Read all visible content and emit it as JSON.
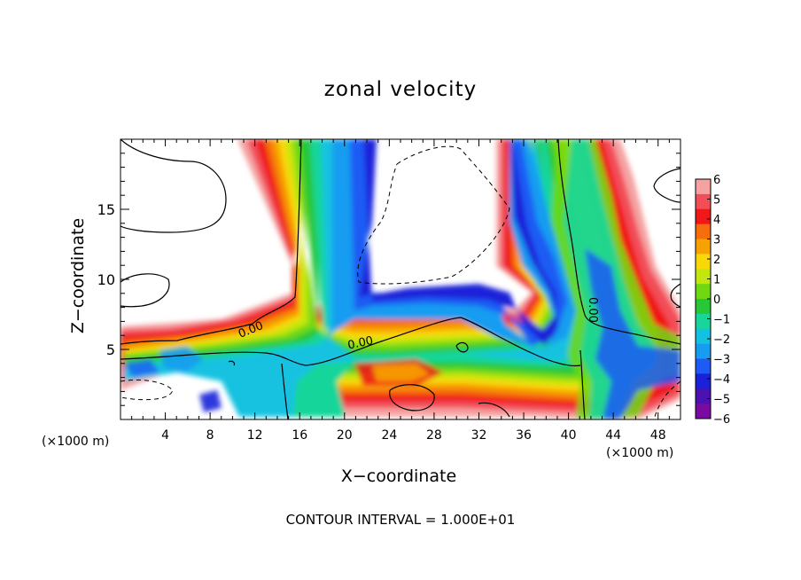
{
  "chart_data": {
    "type": "heatmap",
    "title": "zonal velocity",
    "xlabel": "X−coordinate",
    "ylabel": "Z−coordinate",
    "x_unit_label": "(×1000 m)",
    "footer": "CONTOUR INTERVAL = 1.000E+01",
    "xlim": [
      0,
      50
    ],
    "ylim": [
      0,
      20
    ],
    "x_ticks": [
      4,
      8,
      12,
      16,
      20,
      24,
      28,
      32,
      36,
      40,
      44,
      48
    ],
    "y_ticks": [
      5,
      10,
      15
    ],
    "contour_labels": [
      "0.00",
      "0.00",
      "0.00"
    ],
    "colorbar": {
      "ticks": [
        "6",
        "5",
        "4",
        "3",
        "2",
        "1",
        "0",
        "−1",
        "−2",
        "−3",
        "−4",
        "−5",
        "−6"
      ],
      "range": [
        -6,
        6
      ],
      "colors": [
        "#f4a2a2",
        "#f24e58",
        "#f01818",
        "#f56d0d",
        "#f7a203",
        "#f7d90a",
        "#c3e60f",
        "#70d812",
        "#27c838",
        "#18d59a",
        "#12c2e0",
        "#189cf0",
        "#1e5bf4",
        "#1a21d9",
        "#4b12b0",
        "#7a0aa0"
      ]
    }
  }
}
